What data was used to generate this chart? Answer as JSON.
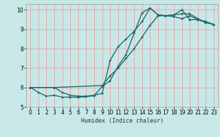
{
  "xlabel": "Humidex (Indice chaleur)",
  "ylabel": "",
  "bg_color": "#c8e8e8",
  "line_color": "#1a6b6b",
  "grid_color": "#e8a0a0",
  "xlim": [
    -0.5,
    23.5
  ],
  "ylim": [
    5.0,
    10.3
  ],
  "yticks": [
    5,
    6,
    7,
    8,
    9,
    10
  ],
  "xticks": [
    0,
    1,
    2,
    3,
    4,
    5,
    6,
    7,
    8,
    9,
    10,
    11,
    12,
    13,
    14,
    15,
    16,
    17,
    18,
    19,
    20,
    21,
    22,
    23
  ],
  "line1_x": [
    0,
    1,
    2,
    3,
    4,
    5,
    6,
    7,
    8,
    9,
    10,
    11,
    12,
    13,
    14,
    15,
    16,
    17,
    18,
    19,
    20,
    21,
    22,
    23
  ],
  "line1_y": [
    6.0,
    5.75,
    5.55,
    5.6,
    5.5,
    5.5,
    5.5,
    5.52,
    5.58,
    6.05,
    6.35,
    7.1,
    7.7,
    8.8,
    9.85,
    10.1,
    9.75,
    9.7,
    9.75,
    10.0,
    9.5,
    9.5,
    9.4,
    9.25
  ],
  "line2_x": [
    0,
    3,
    4,
    5,
    6,
    7,
    8,
    9,
    10,
    11,
    12,
    13,
    14,
    15,
    16,
    17,
    18,
    19,
    20,
    21,
    22,
    23
  ],
  "line2_y": [
    6.0,
    6.0,
    5.75,
    5.6,
    5.55,
    5.55,
    5.6,
    5.7,
    7.4,
    8.1,
    8.5,
    8.9,
    9.4,
    10.1,
    9.75,
    9.7,
    9.65,
    9.55,
    9.7,
    9.5,
    9.35,
    9.25
  ],
  "line3_x": [
    0,
    3,
    9,
    10,
    11,
    12,
    13,
    14,
    15,
    16,
    17,
    18,
    19,
    20,
    21,
    22,
    23
  ],
  "line3_y": [
    6.0,
    6.0,
    6.1,
    6.6,
    7.0,
    7.5,
    8.0,
    8.6,
    9.2,
    9.7,
    9.7,
    9.75,
    9.8,
    9.8,
    9.55,
    9.35,
    9.25
  ]
}
